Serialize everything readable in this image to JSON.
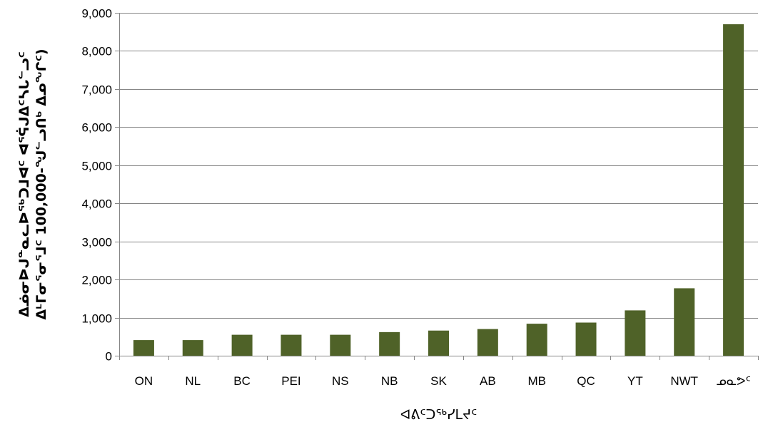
{
  "chart_data": {
    "type": "bar",
    "title": "",
    "ylabel_lines": [
      "ᐃᓅᓂᐅᒍᓐᓇᓚᐅᖅᑐᒧᐊᑦ ᐊᕐᕌᒍᐃᑦᓴᒐᓪᓗᑦ",
      "ᐃᒻᒥᓂᕐᓂᕐᒧᑦ 100,000-ᖑᓪᓗᑎᒃ ᐃᓄᖏᑦ)"
    ],
    "xlabel": "ᐊᕕᑦᑐᖅᓯᒪᔪᑦ",
    "categories": [
      "ON",
      "NL",
      "BC",
      "PEI",
      "NS",
      "NB",
      "SK",
      "AB",
      "MB",
      "QC",
      "YT",
      "NWT",
      "ᓄᓇᕗᑦ"
    ],
    "values": [
      410,
      410,
      550,
      550,
      550,
      620,
      660,
      700,
      840,
      870,
      1190,
      1770,
      8700
    ],
    "ylim": [
      0,
      9000
    ],
    "yticks": [
      0,
      1000,
      2000,
      3000,
      4000,
      5000,
      6000,
      7000,
      8000,
      9000
    ],
    "ytick_labels": [
      "0",
      "1,000",
      "2,000",
      "3,000",
      "4,000",
      "5,000",
      "6,000",
      "7,000",
      "8,000",
      "9,000"
    ],
    "grid": "horizontal",
    "legend": "none",
    "bar_color": "#4f6228",
    "grid_color": "#868686"
  }
}
